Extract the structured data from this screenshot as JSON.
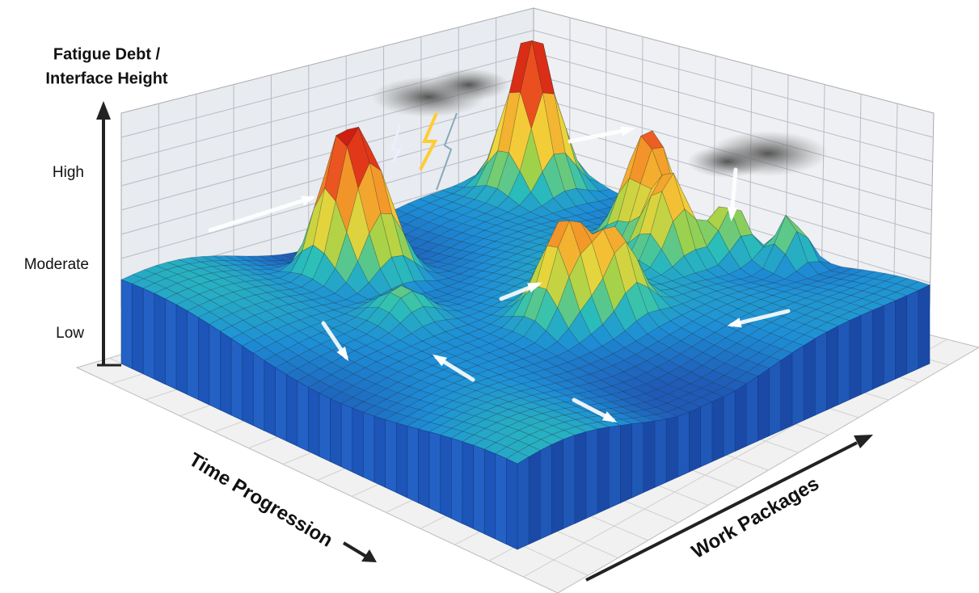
{
  "axes": {
    "vertical": {
      "title": [
        "Fatigue Debt /",
        "Interface Height"
      ],
      "levels": [
        "High",
        "Moderate",
        "Low"
      ]
    },
    "time": "Time Progression",
    "work": "Work Packages"
  }
}
